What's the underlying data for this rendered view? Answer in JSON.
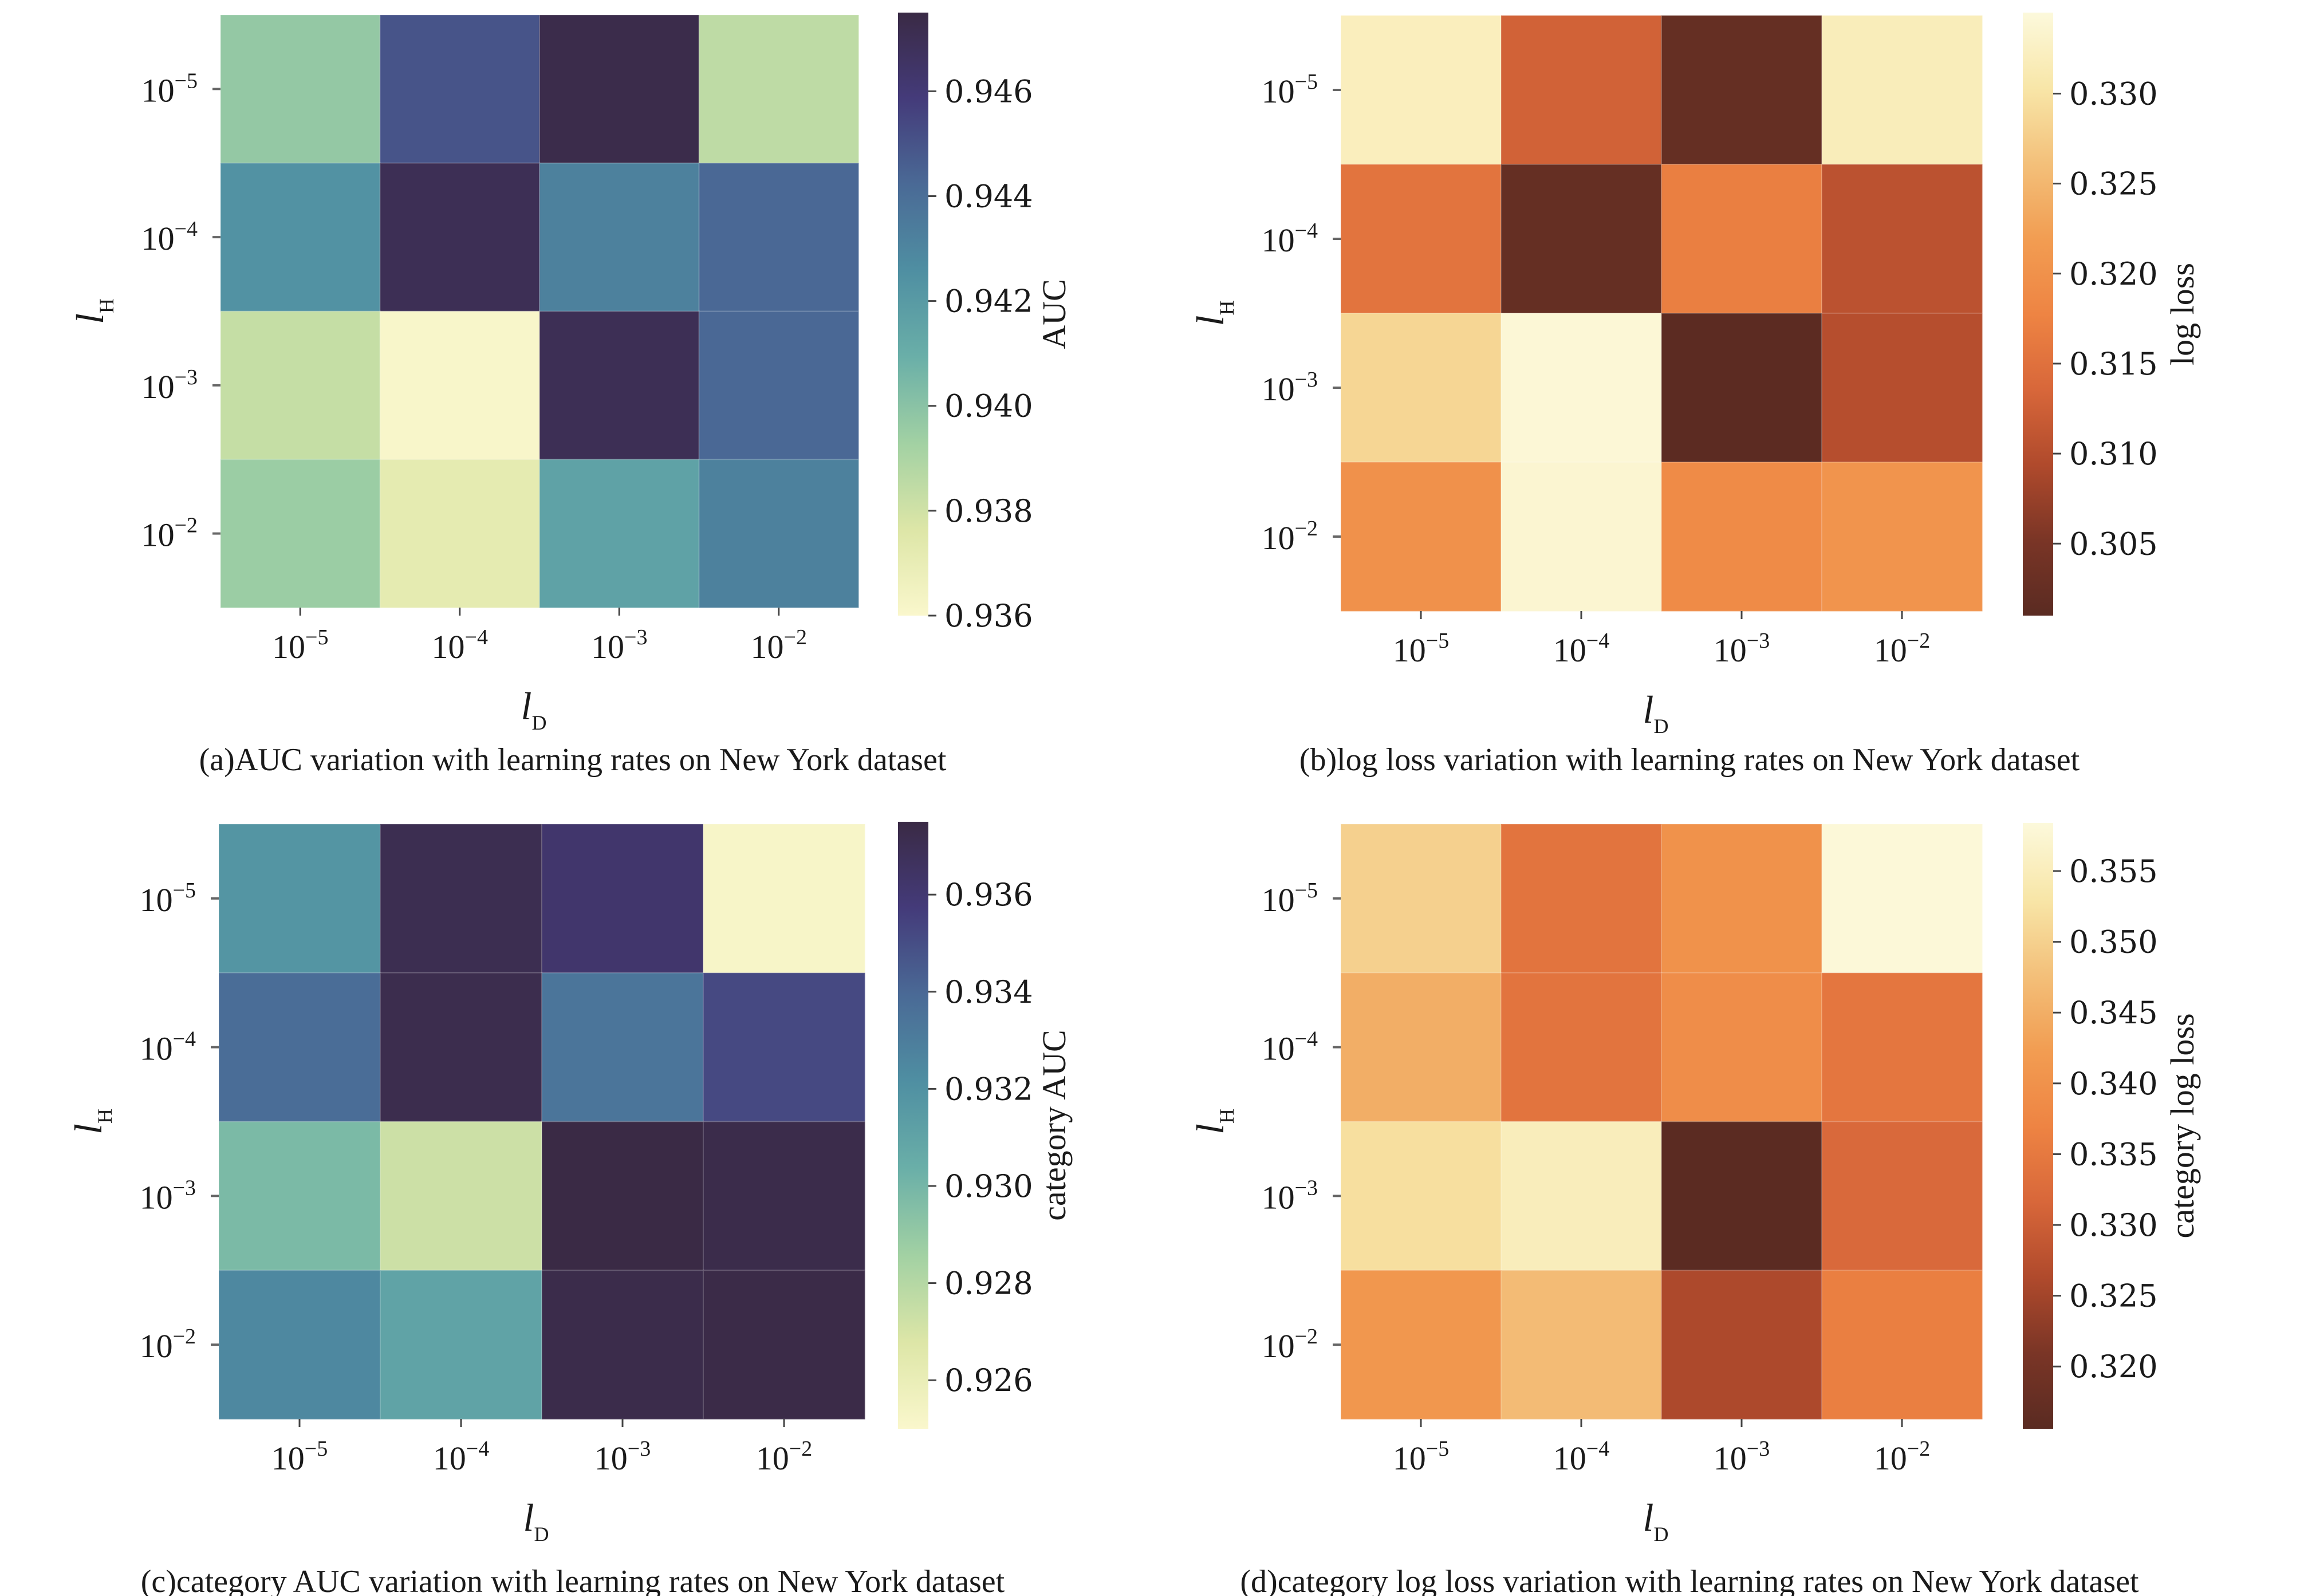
{
  "chart_data": [
    {
      "type": "heatmap",
      "panel": "a",
      "title": "",
      "caption": "(a)AUC variation with learning rates on New York dataset",
      "xlabel": "l_D",
      "xlabel_main": "l",
      "xlabel_sub": "D",
      "ylabel": "l_H",
      "ylabel_main": "l",
      "ylabel_sub": "H",
      "x_categories": [
        "10^-5",
        "10^-4",
        "10^-3",
        "10^-2"
      ],
      "y_categories": [
        "10^-5",
        "10^-4",
        "10^-3",
        "10^-2"
      ],
      "values": [
        [
          0.9397,
          0.945,
          0.9473,
          0.9385
        ],
        [
          0.9424,
          0.947,
          0.9432,
          0.9443
        ],
        [
          0.9383,
          0.9361,
          0.947,
          0.9443
        ],
        [
          0.9395,
          0.9372,
          0.9416,
          0.9432
        ]
      ],
      "colorbar": {
        "label": "AUC",
        "range": [
          0.936,
          0.9475
        ],
        "ticks": [
          "0.936",
          "0.938",
          "0.940",
          "0.942",
          "0.944",
          "0.946"
        ],
        "tick_values": [
          0.936,
          0.938,
          0.94,
          0.942,
          0.944,
          0.946
        ],
        "colormap": "crest",
        "colors": [
          "#faf7cc",
          "#dde6a7",
          "#a2d1a3",
          "#6aafa8",
          "#4f8fa2",
          "#4a6a96",
          "#443b7a",
          "#3a2a45"
        ]
      }
    },
    {
      "type": "heatmap",
      "panel": "b",
      "title": "",
      "caption": "(b)log loss variation with learning rates on New York dataset",
      "xlabel": "l_D",
      "xlabel_main": "l",
      "xlabel_sub": "D",
      "ylabel": "l_H",
      "ylabel_main": "l",
      "ylabel_sub": "H",
      "x_categories": [
        "10^-5",
        "10^-4",
        "10^-3",
        "10^-2"
      ],
      "y_categories": [
        "10^-5",
        "10^-4",
        "10^-3",
        "10^-2"
      ],
      "values": [
        [
          0.332,
          0.3128,
          0.3025,
          0.3318
        ],
        [
          0.3155,
          0.3025,
          0.317,
          0.3105
        ],
        [
          0.3285,
          0.334,
          0.3012,
          0.31
        ],
        [
          0.32,
          0.3336,
          0.319,
          0.3205
        ]
      ],
      "colorbar": {
        "label": "log loss",
        "range": [
          0.301,
          0.3345
        ],
        "ticks": [
          "0.305",
          "0.310",
          "0.315",
          "0.320",
          "0.325",
          "0.330"
        ],
        "tick_values": [
          0.305,
          0.31,
          0.315,
          0.32,
          0.325,
          0.33
        ],
        "colormap": "YlOrBr_r",
        "colors": [
          "#5a2b22",
          "#7a3526",
          "#b04a2c",
          "#d8673a",
          "#ee8443",
          "#f29d52",
          "#f3c07a",
          "#f8e6a8",
          "#fcf9dc"
        ]
      }
    },
    {
      "type": "heatmap",
      "panel": "c",
      "title": "",
      "caption": "(c)category AUC variation with learning rates on New York dataset",
      "xlabel": "l_D",
      "xlabel_main": "l",
      "xlabel_sub": "D",
      "ylabel": "l_H",
      "ylabel_main": "l",
      "ylabel_sub": "H",
      "x_categories": [
        "10^-5",
        "10^-4",
        "10^-3",
        "10^-2"
      ],
      "y_categories": [
        "10^-5",
        "10^-4",
        "10^-3",
        "10^-2"
      ],
      "values": [
        [
          0.9318,
          0.9371,
          0.9362,
          0.9252
        ],
        [
          0.9338,
          0.9372,
          0.9334,
          0.9352
        ],
        [
          0.9298,
          0.9273,
          0.9375,
          0.9373
        ],
        [
          0.9325,
          0.931,
          0.9373,
          0.9374
        ]
      ],
      "colorbar": {
        "label": "category AUC",
        "range": [
          0.925,
          0.9375
        ],
        "ticks": [
          "0.926",
          "0.928",
          "0.930",
          "0.932",
          "0.934",
          "0.936"
        ],
        "tick_values": [
          0.926,
          0.928,
          0.93,
          0.932,
          0.934,
          0.936
        ],
        "colormap": "crest",
        "colors": [
          "#faf7cc",
          "#dde6a7",
          "#a2d1a3",
          "#6aafa8",
          "#4f8fa2",
          "#4a6a96",
          "#443b7a",
          "#3a2a45"
        ]
      }
    },
    {
      "type": "heatmap",
      "panel": "d",
      "title": "",
      "caption": "(d)category log loss variation with learning rates on New York dataset",
      "xlabel": "l_D",
      "xlabel_main": "l",
      "xlabel_sub": "D",
      "ylabel": "l_H",
      "ylabel_main": "l",
      "ylabel_sub": "H",
      "x_categories": [
        "10^-5",
        "10^-4",
        "10^-3",
        "10^-2"
      ],
      "y_categories": [
        "10^-5",
        "10^-4",
        "10^-3",
        "10^-2"
      ],
      "values": [
        [
          0.35,
          0.334,
          0.34,
          0.358
        ],
        [
          0.345,
          0.334,
          0.339,
          0.3345
        ],
        [
          0.352,
          0.355,
          0.3158,
          0.332
        ],
        [
          0.341,
          0.347,
          0.326,
          0.336
        ]
      ],
      "colorbar": {
        "label": "category log loss",
        "range": [
          0.3156,
          0.3584
        ],
        "ticks": [
          "0.320",
          "0.325",
          "0.330",
          "0.335",
          "0.340",
          "0.345",
          "0.350",
          "0.355"
        ],
        "tick_values": [
          0.32,
          0.325,
          0.33,
          0.335,
          0.34,
          0.345,
          0.35,
          0.355
        ],
        "colormap": "YlOrBr_r",
        "colors": [
          "#5a2b22",
          "#7a3526",
          "#b04a2c",
          "#d8673a",
          "#ee8443",
          "#f29d52",
          "#f3c07a",
          "#f8e6a8",
          "#fcf9dc"
        ]
      }
    }
  ]
}
